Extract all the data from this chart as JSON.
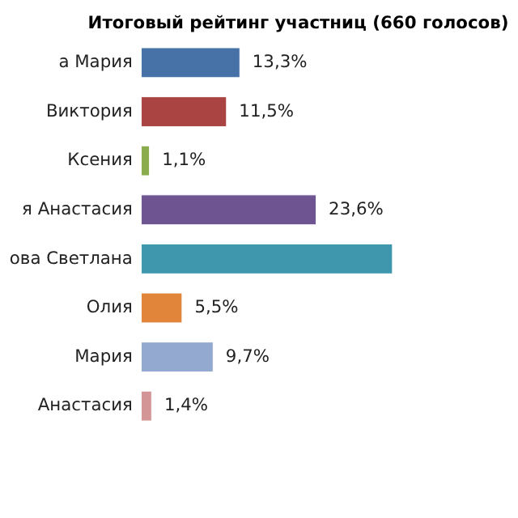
{
  "chart_data": {
    "type": "bar",
    "orientation": "horizontal",
    "title": "Итоговый рейтинг участниц (660 голосов)",
    "categories": [
      "а Мария",
      "Виктория",
      "Ксения",
      "я Анастасия",
      "ова Светлана",
      "Олия",
      "Мария",
      "Анастасия"
    ],
    "values": [
      13.3,
      11.5,
      1.1,
      23.6,
      33.9,
      5.5,
      9.7,
      1.4
    ],
    "value_labels": [
      "13,3%",
      "11,5%",
      "1,1%",
      "23,6%",
      null,
      "5,5%",
      "9,7%",
      "1,4%"
    ],
    "colors": [
      "#4672a8",
      "#a94442",
      "#8aac4c",
      "#6e5490",
      "#3f97ad",
      "#e0853a",
      "#93a9d0",
      "#d39595"
    ],
    "grid": false
  }
}
